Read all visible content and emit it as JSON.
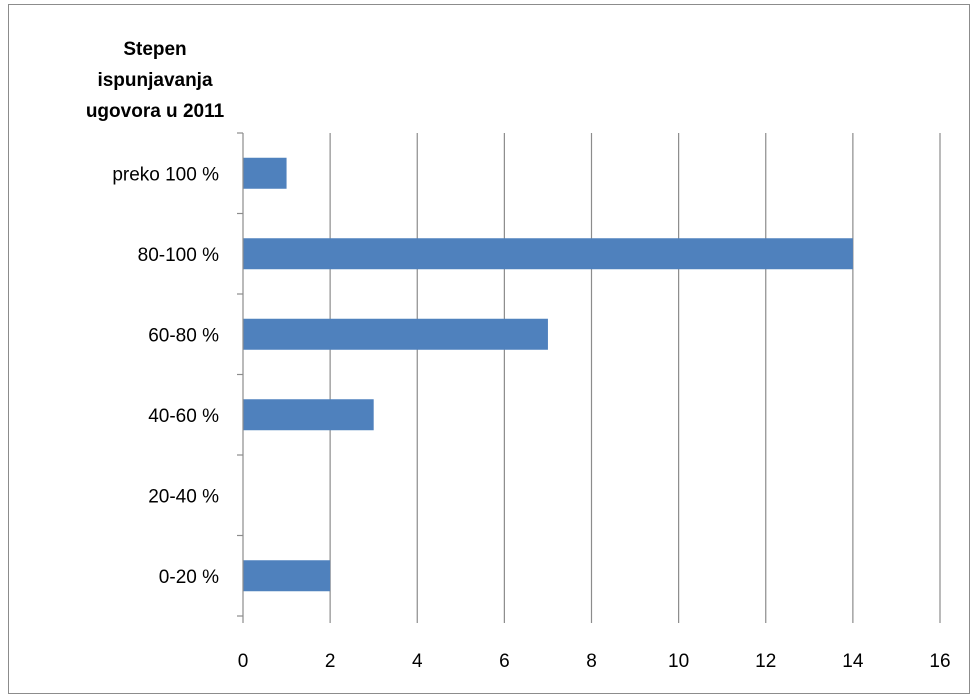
{
  "chart_data": {
    "type": "bar",
    "orientation": "horizontal",
    "title": "",
    "ylabel_lines": [
      "Stepen",
      "ispunjavanja",
      "ugovora u 2011"
    ],
    "xlabel": "",
    "categories": [
      "preko 100 %",
      "80-100 %",
      "60-80 %",
      "40-60 %",
      "20-40 %",
      "0-20 %"
    ],
    "values": [
      1,
      14,
      7,
      3,
      0,
      2
    ],
    "xlim": [
      0,
      16
    ],
    "x_ticks": [
      0,
      2,
      4,
      6,
      8,
      10,
      12,
      14,
      16
    ],
    "grid": "vertical",
    "legend": "none",
    "bar_color": "#4f81bd"
  }
}
